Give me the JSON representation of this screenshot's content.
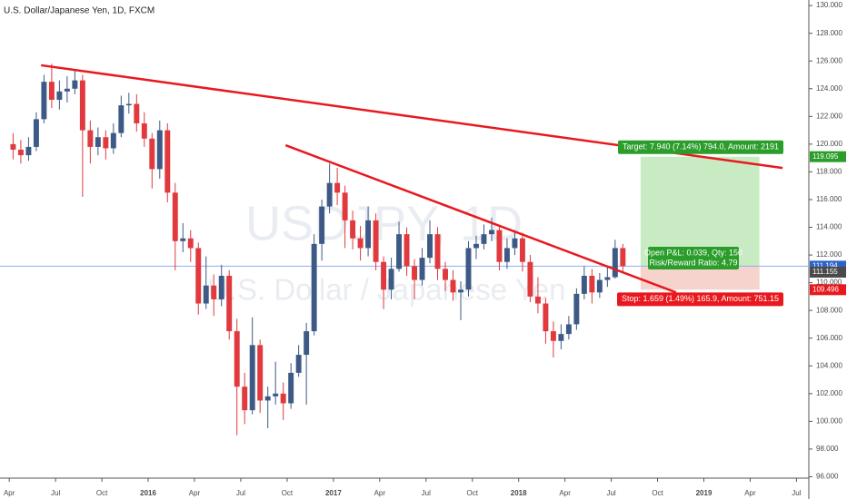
{
  "chart_data": {
    "type": "candlestick",
    "title": "U.S. Dollar/Japanese Yen, 1D, FXCM",
    "watermark": "USDJPY, 1D",
    "watermark_subtitle": "U.S. Dollar / Japanese Yen",
    "up_color": "#3d5a86",
    "down_color": "#e0393e",
    "x": [
      0.25,
      0.75,
      1.25,
      1.75,
      2.25,
      2.75,
      3.25,
      3.75,
      4.25,
      4.75,
      5.25,
      5.75,
      6.25,
      6.75,
      7.25,
      7.75,
      8.25,
      8.75,
      9.25,
      9.75,
      10.25,
      10.75,
      11.25,
      11.75,
      12.25,
      12.75,
      13.25,
      13.75,
      14.25,
      14.75,
      15.25,
      15.75,
      16.25,
      16.75,
      17.25,
      17.75,
      18.25,
      18.75,
      19.25,
      19.75,
      20.25,
      20.75,
      21.25,
      21.75,
      22.25,
      22.75,
      23.25,
      23.75,
      24.25,
      24.75,
      25.25,
      25.75,
      26.25,
      26.75,
      27.25,
      27.75,
      28.25,
      28.75,
      29.25,
      29.75,
      30.25,
      30.75,
      31.25,
      31.75,
      32.25,
      32.75,
      33.25,
      33.75,
      34.25,
      34.75,
      35.25,
      35.75,
      36.25,
      36.75,
      37.25,
      37.75,
      38.25,
      38.75,
      39.25,
      39.75
    ],
    "open": [
      120.0,
      119.6,
      119.2,
      119.8,
      121.8,
      124.5,
      123.2,
      123.8,
      124.0,
      124.6,
      121.0,
      119.8,
      120.5,
      119.7,
      120.8,
      122.8,
      122.9,
      121.5,
      120.4,
      118.2,
      121.0,
      116.5,
      113.0,
      113.2,
      112.5,
      108.5,
      109.8,
      108.8,
      110.5,
      106.5,
      102.5,
      100.8,
      105.5,
      101.5,
      101.8,
      102.0,
      101.3,
      103.5,
      104.8,
      106.5,
      112.8,
      115.5,
      117.2,
      116.5,
      114.5,
      113.2,
      112.5,
      114.5,
      111.5,
      109.5,
      111.0,
      113.5,
      111.2,
      110.2,
      111.8,
      113.5,
      111.0,
      110.2,
      109.3,
      109.5,
      112.5,
      112.8,
      113.5,
      113.8,
      111.5,
      112.5,
      113.2,
      111.5,
      109.0,
      108.5,
      106.5,
      105.8,
      106.3,
      107.0,
      109.2,
      110.5,
      109.3,
      110.2,
      110.4,
      112.5
    ],
    "high": [
      120.8,
      120.3,
      120.5,
      122.3,
      125.0,
      125.8,
      124.6,
      124.9,
      125.3,
      125.0,
      121.7,
      121.2,
      121.0,
      121.5,
      123.5,
      123.7,
      123.6,
      122.3,
      120.8,
      121.7,
      121.5,
      117.2,
      114.3,
      113.8,
      112.9,
      111.9,
      110.6,
      111.3,
      110.9,
      107.4,
      103.5,
      107.5,
      105.9,
      102.5,
      104.3,
      102.8,
      104.2,
      105.5,
      107.1,
      113.5,
      116.0,
      118.6,
      118.3,
      117.0,
      115.2,
      114.1,
      115.5,
      115.0,
      111.9,
      111.8,
      114.4,
      114.0,
      111.7,
      112.5,
      114.5,
      114.0,
      111.5,
      110.9,
      110.1,
      113.0,
      113.4,
      114.2,
      114.7,
      114.1,
      113.2,
      113.8,
      113.6,
      112.0,
      110.4,
      108.9,
      107.2,
      107.0,
      107.6,
      109.6,
      111.2,
      111.0,
      110.7,
      111.1,
      113.1,
      112.8
    ],
    "low": [
      118.9,
      118.6,
      118.8,
      119.5,
      121.5,
      122.6,
      122.5,
      123.0,
      123.6,
      116.2,
      118.6,
      119.2,
      118.9,
      119.3,
      120.5,
      122.2,
      120.9,
      119.8,
      116.8,
      117.5,
      115.8,
      110.9,
      112.2,
      111.5,
      107.7,
      108.1,
      107.6,
      108.3,
      105.9,
      99.0,
      99.8,
      100.5,
      100.6,
      99.5,
      101.2,
      100.1,
      100.9,
      103.2,
      101.2,
      106.2,
      111.6,
      115.0,
      115.6,
      112.5,
      112.4,
      111.6,
      111.9,
      110.9,
      108.1,
      108.8,
      110.8,
      110.5,
      108.8,
      109.8,
      111.4,
      110.2,
      109.4,
      108.7,
      107.3,
      109.0,
      111.7,
      112.4,
      113.0,
      110.9,
      111.0,
      112.0,
      110.8,
      108.6,
      107.8,
      105.6,
      104.6,
      105.2,
      105.9,
      106.6,
      108.8,
      108.5,
      108.9,
      109.7,
      110.3,
      110.7
    ],
    "close": [
      119.6,
      119.2,
      119.8,
      121.8,
      124.5,
      123.2,
      123.8,
      124.0,
      124.6,
      121.0,
      119.8,
      120.5,
      119.7,
      120.8,
      122.8,
      122.9,
      121.5,
      120.4,
      118.2,
      121.0,
      116.5,
      113.0,
      113.2,
      112.5,
      108.5,
      109.8,
      108.8,
      110.5,
      106.5,
      102.5,
      100.8,
      105.5,
      101.5,
      101.8,
      102.0,
      101.3,
      103.5,
      104.8,
      106.5,
      112.8,
      115.5,
      117.2,
      116.5,
      114.5,
      113.2,
      112.5,
      114.5,
      111.5,
      109.5,
      111.0,
      113.5,
      111.2,
      110.2,
      111.8,
      113.5,
      111.0,
      110.2,
      109.3,
      109.5,
      112.5,
      112.8,
      113.5,
      113.8,
      111.5,
      112.5,
      113.2,
      111.5,
      109.0,
      108.5,
      106.5,
      105.8,
      106.3,
      107.0,
      109.2,
      110.5,
      109.3,
      110.2,
      110.4,
      112.5,
      111.2
    ],
    "xlim": [
      -0.6,
      51.8
    ],
    "xticks": [
      {
        "value": 0,
        "label": "Apr"
      },
      {
        "value": 3,
        "label": "Jul"
      },
      {
        "value": 6,
        "label": "Oct"
      },
      {
        "value": 9,
        "label": "2016"
      },
      {
        "value": 12,
        "label": "Apr"
      },
      {
        "value": 15,
        "label": "Jul"
      },
      {
        "value": 18,
        "label": "Oct"
      },
      {
        "value": 21,
        "label": "2017"
      },
      {
        "value": 24,
        "label": "Apr"
      },
      {
        "value": 27,
        "label": "Jul"
      },
      {
        "value": 30,
        "label": "Oct"
      },
      {
        "value": 33,
        "label": "2018"
      },
      {
        "value": 36,
        "label": "Apr"
      },
      {
        "value": 39,
        "label": "Jul"
      },
      {
        "value": 42,
        "label": "Oct"
      },
      {
        "value": 45,
        "label": "2019"
      },
      {
        "value": 48,
        "label": "Apr"
      },
      {
        "value": 51,
        "label": "Jul"
      }
    ],
    "ylim": [
      95.9,
      130.4
    ],
    "yticks": [
      {
        "value": 96,
        "label": "96.000"
      },
      {
        "value": 98,
        "label": "98.000"
      },
      {
        "value": 100,
        "label": "100.000"
      },
      {
        "value": 102,
        "label": "102.000"
      },
      {
        "value": 104,
        "label": "104.000"
      },
      {
        "value": 106,
        "label": "106.000"
      },
      {
        "value": 108,
        "label": "108.000"
      },
      {
        "value": 110,
        "label": "110.000"
      },
      {
        "value": 112,
        "label": "112.000"
      },
      {
        "value": 114,
        "label": "114.000"
      },
      {
        "value": 116,
        "label": "116.000"
      },
      {
        "value": 118,
        "label": "118.000"
      },
      {
        "value": 120,
        "label": "120.000"
      },
      {
        "value": 122,
        "label": "122.000"
      },
      {
        "value": 124,
        "label": "124.000"
      },
      {
        "value": 126,
        "label": "126.000"
      },
      {
        "value": 128,
        "label": "128.000"
      },
      {
        "value": 130,
        "label": "130.000"
      }
    ],
    "last_price": 111.194,
    "trendlines": [
      {
        "x": [
          2.06,
          50.1
        ],
        "y": [
          125.69,
          118.28
        ],
        "color": "#e8191e"
      },
      {
        "x": [
          17.9,
          43.2
        ],
        "y": [
          119.92,
          109.3
        ],
        "color": "#e8191e"
      }
    ],
    "position": {
      "x": [
        40.9,
        48.6
      ],
      "entry": 111.155,
      "target": 119.095,
      "stop": 109.496,
      "target_text": "Target: 7.940 (7.14%) 794.0, Amount: 2191",
      "pnl_text": "Open P&L: 0.039, Qty: 150",
      "ratio_text": "Risk/Reward Ratio: 4.79",
      "stop_text": "Stop: 1.659 (1.49%) 165.9, Amount: 751.15"
    }
  }
}
